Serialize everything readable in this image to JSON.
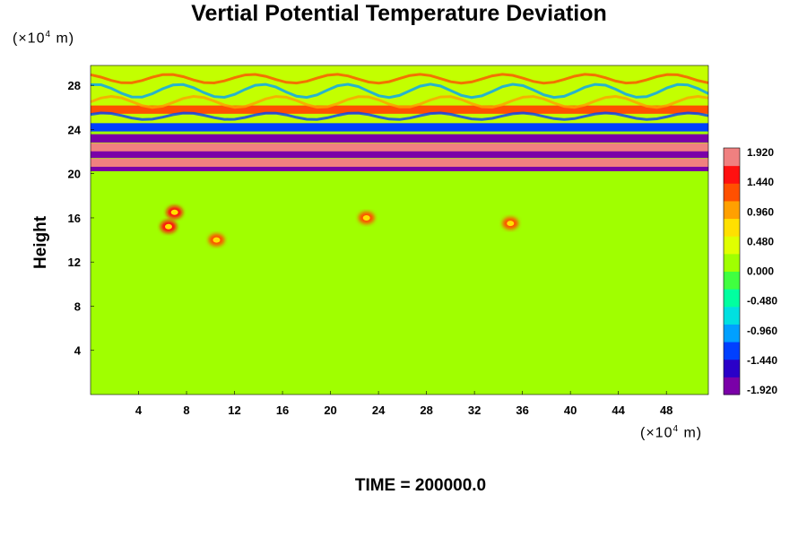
{
  "chart_data": {
    "type": "heatmap",
    "title": "Vertial Potential Temperature Deviation",
    "ylabel": "Height",
    "y_unit": {
      "prefix": "(×10",
      "exp": "4",
      "suffix": " m)"
    },
    "x_unit": {
      "prefix": "(×10",
      "exp": "4",
      "suffix": " m)"
    },
    "xlim": [
      0,
      51.5
    ],
    "ylim": [
      0,
      29.8
    ],
    "x_ticks": [
      4,
      8,
      12,
      16,
      20,
      24,
      28,
      32,
      36,
      40,
      44,
      48
    ],
    "y_ticks": [
      4,
      8,
      12,
      16,
      20,
      24,
      28
    ],
    "colorbar": {
      "min": -1.92,
      "max": 1.92,
      "labels": [
        "1.920",
        "1.440",
        "0.960",
        "0.480",
        "0.000",
        "-0.480",
        "-0.960",
        "-1.440",
        "-1.920"
      ],
      "colors": [
        "#7a00a8",
        "#2a00c8",
        "#0040ff",
        "#00a0ff",
        "#00e0e0",
        "#00ffa0",
        "#40ff40",
        "#a0ff00",
        "#e0ff00",
        "#ffe000",
        "#ffa000",
        "#ff5000",
        "#ff1010",
        "#f08080"
      ]
    },
    "bands": [
      {
        "y_center": 20.6,
        "value": -1.92,
        "note": ""
      },
      {
        "y_center": 21.0,
        "value": 1.92,
        "note": ""
      },
      {
        "y_center": 21.8,
        "value": -1.92,
        "note": ""
      },
      {
        "y_center": 22.4,
        "value": 1.92,
        "note": ""
      },
      {
        "y_center": 23.2,
        "value": -1.92,
        "note": ""
      },
      {
        "y_center": 24.2,
        "value": -1.4,
        "note": ""
      },
      {
        "y_center": 25.8,
        "value": 1.2,
        "note": ""
      }
    ],
    "hot_spots": [
      {
        "x": 7.0,
        "y": 16.5,
        "value": 1.7
      },
      {
        "x": 6.5,
        "y": 15.2,
        "value": 1.5
      },
      {
        "x": 10.5,
        "y": 14.0,
        "value": 1.4
      },
      {
        "x": 23.0,
        "y": 16.0,
        "value": 1.3
      },
      {
        "x": 35.0,
        "y": 15.5,
        "value": 1.3
      }
    ]
  },
  "time_label": "TIME = 200000.0"
}
